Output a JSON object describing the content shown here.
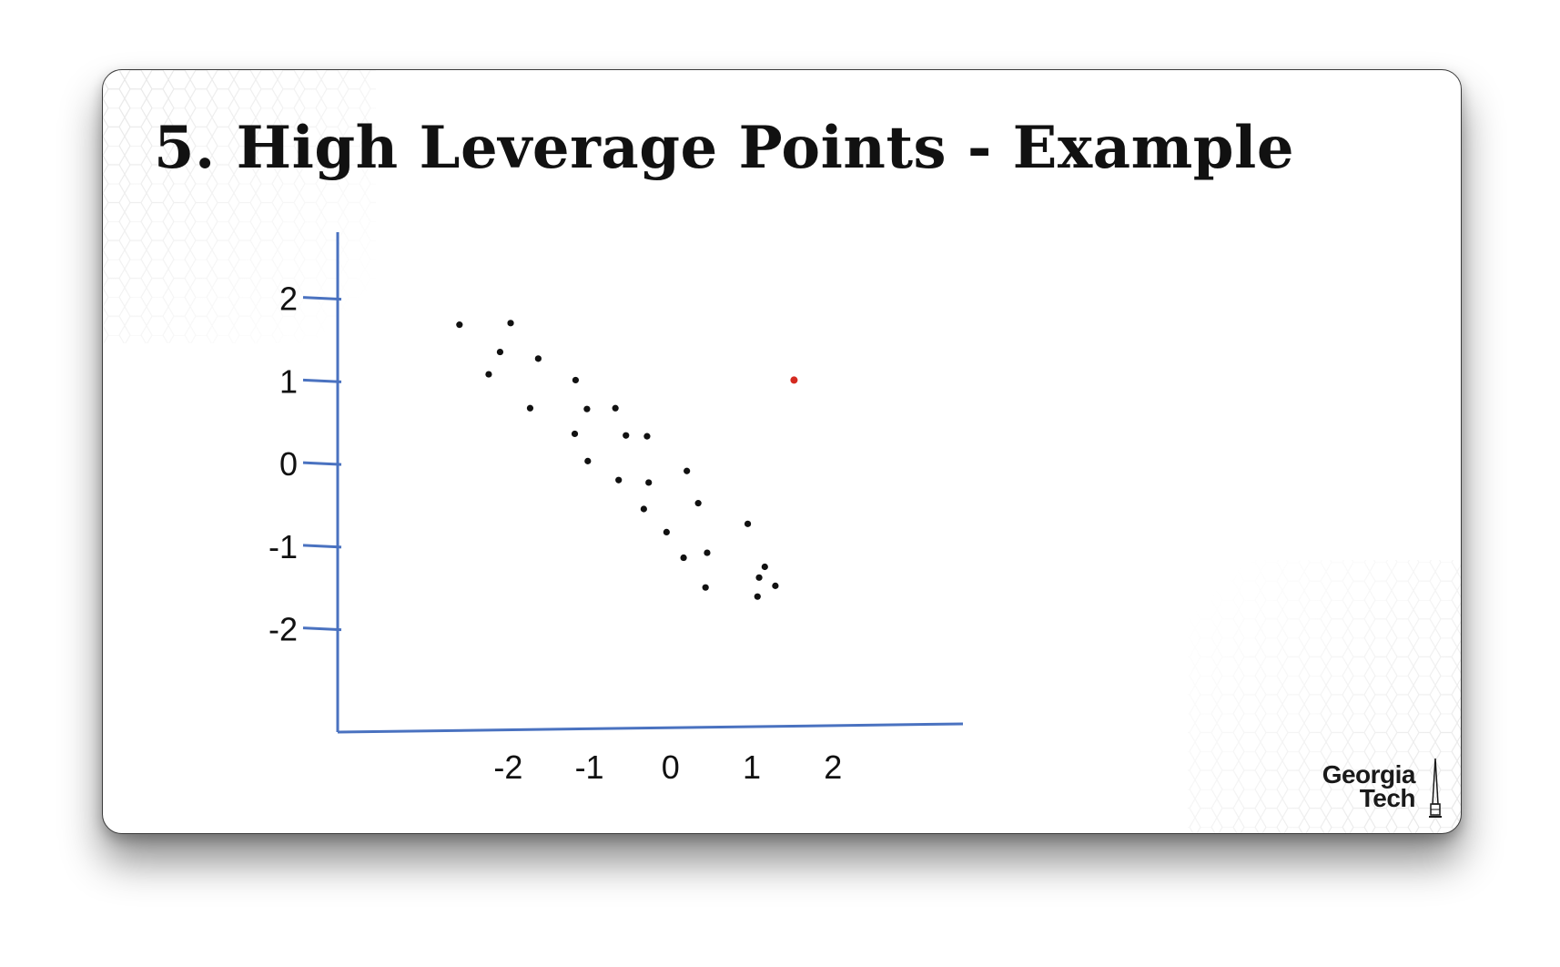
{
  "slide": {
    "title": "5.  High Leverage Points - Example",
    "logo_line1": "Georgia",
    "logo_line2": "Tech"
  },
  "colors": {
    "axis": "#4a72c0",
    "point": "#111111",
    "high_leverage_point": "#d42a20",
    "hex_pattern": "#e8e8e8"
  },
  "icons": {
    "logo": "georgia-tech-logo",
    "tower": "tech-tower-icon"
  },
  "chart_data": {
    "type": "scatter",
    "title": "",
    "xlabel": "",
    "ylabel": "",
    "x_ticks": [
      -2,
      -1,
      0,
      1,
      2
    ],
    "y_ticks": [
      2,
      1,
      0,
      -1,
      -2
    ],
    "xlim": [
      -4.1,
      3.6
    ],
    "ylim": [
      -3.25,
      2.8
    ],
    "grid": false,
    "legend": "none",
    "series": [
      {
        "points": [
          [
            -2.6,
            1.68
          ],
          [
            -1.97,
            1.7
          ],
          [
            -2.1,
            1.35
          ],
          [
            -2.24,
            1.08
          ],
          [
            -1.63,
            1.27
          ],
          [
            -1.17,
            1.01
          ],
          [
            -1.73,
            0.67
          ],
          [
            -1.03,
            0.66
          ],
          [
            -0.68,
            0.67
          ],
          [
            -1.18,
            0.36
          ],
          [
            -0.55,
            0.34
          ],
          [
            -0.29,
            0.33
          ],
          [
            -1.02,
            0.03
          ],
          [
            -0.64,
            -0.2
          ],
          [
            -0.27,
            -0.23
          ],
          [
            0.2,
            -0.09
          ],
          [
            0.34,
            -0.48
          ],
          [
            -0.33,
            -0.55
          ],
          [
            -0.05,
            -0.83
          ],
          [
            0.95,
            -0.73
          ],
          [
            0.45,
            -1.08
          ],
          [
            0.16,
            -1.14
          ],
          [
            1.16,
            -1.25
          ],
          [
            1.09,
            -1.38
          ],
          [
            1.29,
            -1.48
          ],
          [
            0.43,
            -1.5
          ],
          [
            1.07,
            -1.61
          ]
        ]
      },
      {
        "points": [
          [
            1.52,
            1.01
          ]
        ]
      }
    ]
  }
}
